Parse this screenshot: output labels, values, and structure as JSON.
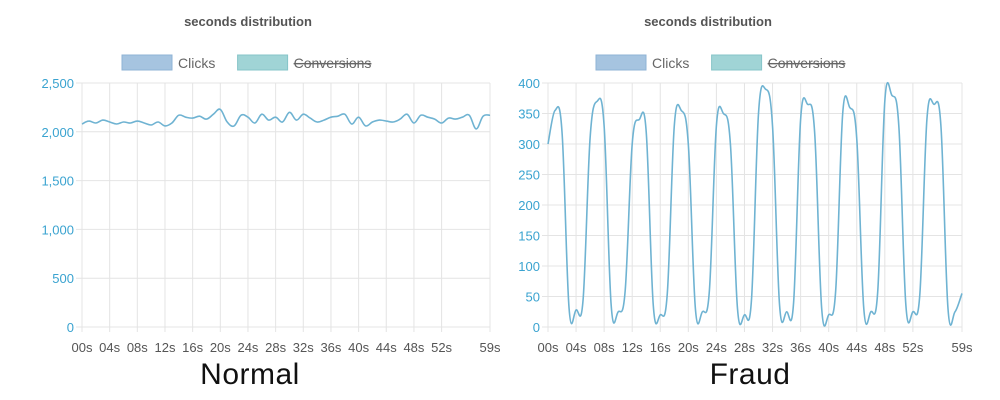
{
  "colors": {
    "clicks_fill": "#a6c4e0",
    "clicks_stroke": "#8fb3d6",
    "conversions_fill": "#a0d4d6",
    "conversions_stroke": "#86c4c8",
    "line": "#6fb3d2",
    "grid": "#e4e4e4",
    "y_tick": "#3aa3d0"
  },
  "chart_data": [
    {
      "type": "line",
      "title": "seconds distribution",
      "caption": "Normal",
      "legend": {
        "placement": "top",
        "items": [
          {
            "label": "Clicks",
            "hidden": false
          },
          {
            "label": "Conversions",
            "hidden": true
          }
        ]
      },
      "grid": true,
      "ylim": [
        0,
        2500
      ],
      "yticks": [
        0,
        500,
        1000,
        1500,
        2000,
        2500
      ],
      "ytick_labels": [
        "0",
        "500",
        "1,000",
        "1,500",
        "2,000",
        "2,500"
      ],
      "xlim": [
        0,
        59
      ],
      "xtick_values": [
        0,
        4,
        8,
        12,
        16,
        20,
        24,
        28,
        32,
        36,
        40,
        44,
        48,
        52,
        59
      ],
      "xtick_labels": [
        "00s",
        "04s",
        "08s",
        "12s",
        "16s",
        "20s",
        "24s",
        "28s",
        "32s",
        "36s",
        "40s",
        "44s",
        "48s",
        "52s",
        "59s"
      ],
      "series": [
        {
          "name": "Clicks",
          "x": [
            0,
            1,
            2,
            3,
            4,
            5,
            6,
            7,
            8,
            9,
            10,
            11,
            12,
            13,
            14,
            15,
            16,
            17,
            18,
            19,
            20,
            21,
            22,
            23,
            24,
            25,
            26,
            27,
            28,
            29,
            30,
            31,
            32,
            33,
            34,
            35,
            36,
            37,
            38,
            39,
            40,
            41,
            42,
            43,
            44,
            45,
            46,
            47,
            48,
            49,
            50,
            51,
            52,
            53,
            54,
            55,
            56,
            57,
            58,
            59
          ],
          "values": [
            2080,
            2110,
            2090,
            2120,
            2100,
            2080,
            2100,
            2090,
            2110,
            2090,
            2070,
            2100,
            2060,
            2090,
            2170,
            2150,
            2140,
            2160,
            2130,
            2180,
            2230,
            2100,
            2060,
            2170,
            2150,
            2090,
            2180,
            2120,
            2150,
            2100,
            2200,
            2120,
            2180,
            2140,
            2100,
            2120,
            2150,
            2160,
            2180,
            2080,
            2150,
            2060,
            2100,
            2120,
            2110,
            2100,
            2130,
            2180,
            2090,
            2170,
            2150,
            2130,
            2090,
            2140,
            2130,
            2150,
            2170,
            2030,
            2160,
            2170
          ]
        }
      ]
    },
    {
      "type": "line",
      "title": "seconds distribution",
      "caption": "Fraud",
      "legend": {
        "placement": "top",
        "items": [
          {
            "label": "Clicks",
            "hidden": false
          },
          {
            "label": "Conversions",
            "hidden": true
          }
        ]
      },
      "grid": true,
      "ylim": [
        0,
        400
      ],
      "yticks": [
        0,
        50,
        100,
        150,
        200,
        250,
        300,
        350,
        400
      ],
      "ytick_labels": [
        "0",
        "50",
        "100",
        "150",
        "200",
        "250",
        "300",
        "350",
        "400"
      ],
      "xlim": [
        0,
        59
      ],
      "xtick_values": [
        0,
        4,
        8,
        12,
        16,
        20,
        24,
        28,
        32,
        36,
        40,
        44,
        48,
        52,
        59
      ],
      "xtick_labels": [
        "00s",
        "04s",
        "08s",
        "12s",
        "16s",
        "20s",
        "24s",
        "28s",
        "32s",
        "36s",
        "40s",
        "44s",
        "48s",
        "52s",
        "59s"
      ],
      "series": [
        {
          "name": "Clicks",
          "x": [
            0,
            1,
            2,
            3,
            4,
            5,
            6,
            7,
            8,
            9,
            10,
            11,
            12,
            13,
            14,
            15,
            16,
            17,
            18,
            19,
            20,
            21,
            22,
            23,
            24,
            25,
            26,
            27,
            28,
            29,
            30,
            31,
            32,
            33,
            34,
            35,
            36,
            37,
            38,
            39,
            40,
            41,
            42,
            43,
            44,
            45,
            46,
            47,
            48,
            49,
            50,
            51,
            52,
            53,
            54,
            55,
            56,
            57,
            58,
            59
          ],
          "values": [
            300,
            355,
            320,
            30,
            28,
            45,
            310,
            370,
            330,
            35,
            25,
            60,
            300,
            340,
            320,
            35,
            20,
            55,
            330,
            355,
            300,
            30,
            25,
            60,
            330,
            350,
            300,
            30,
            20,
            45,
            350,
            390,
            330,
            35,
            25,
            40,
            340,
            365,
            320,
            30,
            20,
            60,
            350,
            360,
            310,
            30,
            25,
            60,
            370,
            380,
            330,
            35,
            25,
            55,
            340,
            365,
            330,
            30,
            25,
            55
          ]
        }
      ]
    }
  ]
}
